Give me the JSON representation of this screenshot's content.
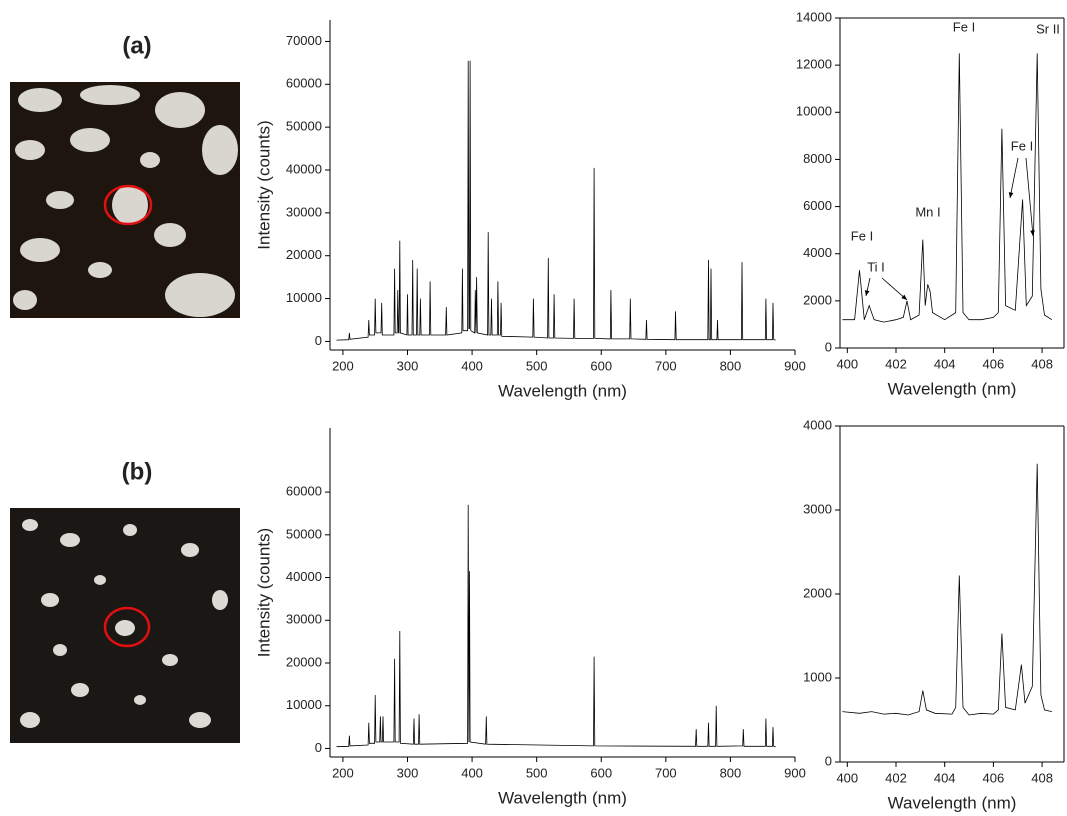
{
  "panel_labels": [
    "(a)",
    "(b)"
  ],
  "chart_data": [
    {
      "type": "line",
      "x_label": "Wavelength (nm)",
      "y_label": "Intensity (counts)",
      "color": "#000000",
      "xlim": [
        180,
        900
      ],
      "ylim": [
        -2000,
        75000
      ],
      "xticks": [
        200,
        300,
        400,
        500,
        600,
        700,
        800,
        900
      ],
      "yticks": [
        0,
        10000,
        20000,
        30000,
        40000,
        50000,
        60000,
        70000
      ],
      "x": [
        190,
        209,
        210,
        211,
        239,
        240,
        241,
        249,
        250,
        251,
        259,
        260,
        261,
        279,
        280,
        281,
        284,
        285,
        286,
        287,
        288,
        289,
        299,
        300,
        301,
        307,
        308,
        309,
        314,
        315,
        316,
        319,
        320,
        321,
        334,
        335,
        336,
        359,
        360,
        361,
        384,
        385,
        386,
        393,
        394,
        395,
        396,
        397,
        398,
        404,
        405,
        406,
        407,
        408,
        424,
        425,
        426,
        429,
        430,
        431,
        439,
        440,
        441,
        444,
        445,
        446,
        494,
        495,
        496,
        517,
        518,
        519,
        526,
        527,
        528,
        557,
        558,
        559,
        588,
        589,
        590,
        614,
        615,
        616,
        644,
        645,
        646,
        669,
        670,
        671,
        714,
        715,
        716,
        765,
        766,
        767,
        769,
        770,
        771,
        779,
        780,
        781,
        817,
        818,
        819,
        854,
        855,
        856,
        865,
        866,
        867,
        870
      ],
      "values": [
        300,
        400,
        2000,
        500,
        1000,
        5000,
        1500,
        1500,
        10000,
        2000,
        2000,
        9000,
        1500,
        1500,
        17000,
        2000,
        2000,
        12000,
        2000,
        2000,
        23500,
        2000,
        1500,
        11000,
        1500,
        1500,
        19000,
        1500,
        1500,
        17000,
        1500,
        1500,
        10000,
        1500,
        1500,
        14000,
        1500,
        1500,
        8000,
        1500,
        2000,
        17000,
        2500,
        2500,
        65500,
        3000,
        3000,
        65500,
        2500,
        2000,
        12000,
        2000,
        15000,
        2000,
        1500,
        25500,
        1500,
        1500,
        10000,
        1500,
        1500,
        14000,
        1500,
        1500,
        9000,
        1200,
        1000,
        10000,
        1000,
        800,
        19500,
        800,
        800,
        11000,
        800,
        700,
        10000,
        700,
        700,
        40500,
        700,
        600,
        12000,
        600,
        600,
        10000,
        600,
        500,
        5000,
        500,
        400,
        7000,
        400,
        400,
        19000,
        400,
        400,
        17000,
        400,
        400,
        5000,
        400,
        400,
        18500,
        400,
        400,
        10000,
        400,
        400,
        9000,
        400,
        300
      ]
    },
    {
      "type": "line",
      "x_label": "Wavelength (nm)",
      "color": "#000000",
      "box": true,
      "xlim": [
        399.7,
        408.9
      ],
      "ylim": [
        0,
        14000
      ],
      "xticks": [
        400,
        402,
        404,
        406,
        408
      ],
      "yticks": [
        0,
        2000,
        4000,
        6000,
        8000,
        10000,
        12000,
        14000
      ],
      "annotations": [
        "Fe I",
        "Ti I",
        "Mn I",
        "Fe I",
        "Fe I",
        "Sr II"
      ],
      "x": [
        399.8,
        400.3,
        400.5,
        400.7,
        400.9,
        401.1,
        401.5,
        402.0,
        402.3,
        402.45,
        402.6,
        402.95,
        403.1,
        403.2,
        403.3,
        403.4,
        403.5,
        404.0,
        404.45,
        404.6,
        404.75,
        405.0,
        405.5,
        406.0,
        406.2,
        406.35,
        406.5,
        406.9,
        407.2,
        407.35,
        407.6,
        407.8,
        407.95,
        408.1,
        408.4
      ],
      "values": [
        1200,
        1200,
        3300,
        1200,
        1800,
        1200,
        1100,
        1200,
        1300,
        2000,
        1200,
        1400,
        4600,
        1800,
        2700,
        2400,
        1500,
        1200,
        1500,
        12500,
        1500,
        1200,
        1200,
        1300,
        1500,
        9300,
        1800,
        1600,
        6300,
        1800,
        2200,
        12500,
        2500,
        1400,
        1200
      ]
    },
    {
      "type": "line",
      "x_label": "Wavelength (nm)",
      "y_label": "Intensity (counts)",
      "color": "#000000",
      "xlim": [
        180,
        900
      ],
      "ylim": [
        -2000,
        75000
      ],
      "xticks": [
        200,
        300,
        400,
        500,
        600,
        700,
        800,
        900
      ],
      "yticks": [
        0,
        10000,
        20000,
        30000,
        40000,
        50000,
        60000
      ],
      "x": [
        190,
        209,
        210,
        211,
        239,
        240,
        241,
        249,
        250,
        251,
        257,
        258,
        259,
        261,
        262,
        263,
        279,
        280,
        281,
        287,
        288,
        289,
        309,
        310,
        311,
        317,
        318,
        319,
        393,
        394,
        395,
        396,
        397,
        421,
        422,
        423,
        588,
        589,
        590,
        746,
        747,
        748,
        765,
        766,
        767,
        777,
        778,
        779,
        819,
        820,
        821,
        854,
        855,
        856,
        865,
        866,
        867,
        870
      ],
      "values": [
        400,
        500,
        3000,
        600,
        800,
        6000,
        1200,
        1200,
        12500,
        1500,
        1500,
        7500,
        1500,
        1500,
        7500,
        1500,
        1500,
        21000,
        1500,
        1500,
        27500,
        1200,
        1000,
        7000,
        1000,
        1000,
        8000,
        1000,
        1200,
        57000,
        1500,
        41500,
        1500,
        1000,
        7500,
        1000,
        600,
        21500,
        600,
        500,
        4500,
        500,
        500,
        6000,
        500,
        500,
        10000,
        500,
        600,
        4500,
        500,
        500,
        7000,
        500,
        500,
        5000,
        500,
        400
      ]
    },
    {
      "type": "line",
      "x_label": "Wavelength (nm)",
      "color": "#000000",
      "box": true,
      "xlim": [
        399.7,
        408.9
      ],
      "ylim": [
        0,
        4000
      ],
      "xticks": [
        400,
        402,
        404,
        406,
        408
      ],
      "yticks": [
        0,
        1000,
        2000,
        3000,
        4000
      ],
      "x": [
        399.8,
        400.5,
        401.0,
        401.5,
        402.0,
        402.5,
        402.95,
        403.1,
        403.25,
        403.6,
        404.3,
        404.45,
        404.6,
        404.75,
        405.0,
        405.5,
        406.0,
        406.2,
        406.35,
        406.5,
        406.9,
        407.15,
        407.3,
        407.6,
        407.8,
        407.95,
        408.1,
        408.4
      ],
      "values": [
        600,
        580,
        600,
        570,
        580,
        560,
        600,
        850,
        620,
        580,
        570,
        650,
        2220,
        650,
        560,
        580,
        570,
        620,
        1530,
        650,
        620,
        1160,
        700,
        900,
        3550,
        800,
        620,
        600
      ]
    }
  ]
}
